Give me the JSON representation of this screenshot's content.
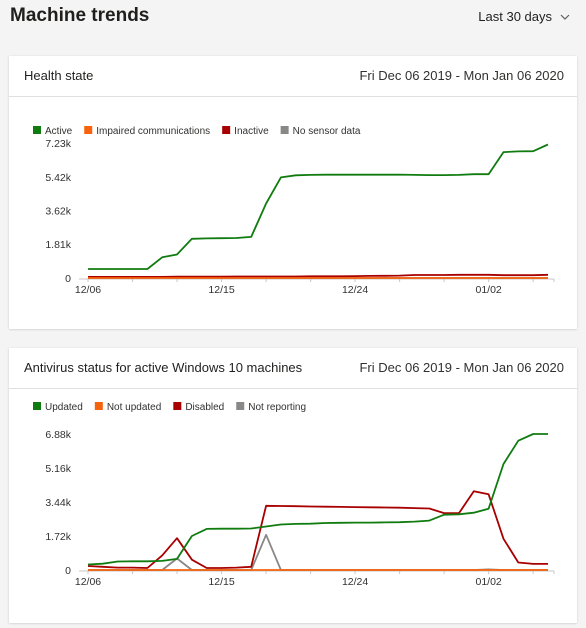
{
  "page": {
    "title": "Machine trends",
    "range_selector": {
      "value": "Last 30 days",
      "icon": "chevron-down-icon"
    }
  },
  "cards": [
    {
      "title": "Health state",
      "date_range": "Fri Dec 06 2019 - Mon Jan 06 2020"
    },
    {
      "title": "Antivirus status for active Windows 10 machines",
      "date_range": "Fri Dec 06 2019 - Mon Jan 06 2020"
    }
  ],
  "chart_data": [
    {
      "type": "line",
      "title": "",
      "x": [
        "12/06",
        "12/07",
        "12/08",
        "12/09",
        "12/10",
        "12/11",
        "12/12",
        "12/13",
        "12/14",
        "12/15",
        "12/16",
        "12/17",
        "12/18",
        "12/19",
        "12/20",
        "12/21",
        "12/22",
        "12/23",
        "12/24",
        "12/25",
        "12/26",
        "12/27",
        "12/28",
        "12/29",
        "12/30",
        "12/31",
        "01/01",
        "01/02",
        "01/03",
        "01/04",
        "01/05",
        "01/06"
      ],
      "x_tick_labels": [
        "12/06",
        "12/15",
        "12/24",
        "01/02"
      ],
      "y_ticks": [
        0,
        1810,
        3620,
        5420,
        7230
      ],
      "y_tick_labels": [
        "0",
        "1.81k",
        "3.62k",
        "5.42k",
        "7.23k"
      ],
      "ylim": [
        0,
        7230
      ],
      "legend_position": "top-left",
      "grid": false,
      "series": [
        {
          "name": "Active",
          "color": "#107c10",
          "values": [
            480,
            480,
            480,
            480,
            480,
            1110,
            1260,
            2100,
            2120,
            2130,
            2140,
            2200,
            3990,
            5390,
            5500,
            5520,
            5530,
            5530,
            5530,
            5530,
            5530,
            5540,
            5520,
            5510,
            5510,
            5520,
            5560,
            5560,
            6740,
            6780,
            6790,
            7150
          ]
        },
        {
          "name": "Impaired communications",
          "color": "#f7630c",
          "values": [
            0,
            0,
            0,
            0,
            0,
            0,
            0,
            0,
            0,
            0,
            0,
            0,
            0,
            0,
            0,
            0,
            0,
            0,
            0,
            0,
            0,
            0,
            0,
            0,
            0,
            0,
            0,
            0,
            0,
            0,
            0,
            0
          ]
        },
        {
          "name": "Inactive",
          "color": "#a80000",
          "values": [
            60,
            60,
            60,
            60,
            60,
            60,
            70,
            70,
            70,
            70,
            80,
            80,
            80,
            80,
            80,
            90,
            90,
            90,
            100,
            110,
            120,
            130,
            160,
            160,
            160,
            170,
            170,
            170,
            150,
            150,
            150,
            170
          ]
        },
        {
          "name": "No sensor data",
          "color": "#8a8886",
          "values": [
            0,
            0,
            0,
            0,
            0,
            0,
            0,
            0,
            0,
            0,
            0,
            0,
            0,
            0,
            0,
            0,
            0,
            0,
            0,
            0,
            0,
            0,
            0,
            0,
            0,
            0,
            0,
            0,
            0,
            0,
            0,
            0
          ]
        }
      ]
    },
    {
      "type": "line",
      "title": "",
      "x": [
        "12/06",
        "12/07",
        "12/08",
        "12/09",
        "12/10",
        "12/11",
        "12/12",
        "12/13",
        "12/14",
        "12/15",
        "12/16",
        "12/17",
        "12/18",
        "12/19",
        "12/20",
        "12/21",
        "12/22",
        "12/23",
        "12/24",
        "12/25",
        "12/26",
        "12/27",
        "12/28",
        "12/29",
        "12/30",
        "12/31",
        "01/01",
        "01/02",
        "01/03",
        "01/04",
        "01/05",
        "01/06"
      ],
      "x_tick_labels": [
        "12/06",
        "12/15",
        "12/24",
        "01/02"
      ],
      "y_ticks": [
        0,
        1720,
        3440,
        5160,
        6880
      ],
      "y_tick_labels": [
        "0",
        "1.72k",
        "3.44k",
        "5.16k",
        "6.88k"
      ],
      "ylim": [
        0,
        6880
      ],
      "legend_position": "top-left",
      "grid": false,
      "series": [
        {
          "name": "Updated",
          "color": "#107c10",
          "values": [
            280,
            320,
            430,
            440,
            440,
            460,
            560,
            1720,
            2080,
            2090,
            2090,
            2100,
            2200,
            2300,
            2330,
            2340,
            2380,
            2390,
            2400,
            2400,
            2410,
            2420,
            2450,
            2500,
            2800,
            2820,
            2900,
            3100,
            5360,
            6540,
            6880,
            6880
          ]
        },
        {
          "name": "Not updated",
          "color": "#f7630c",
          "values": [
            0,
            0,
            0,
            0,
            0,
            0,
            0,
            0,
            0,
            0,
            0,
            0,
            0,
            0,
            0,
            0,
            0,
            0,
            0,
            0,
            0,
            0,
            0,
            0,
            0,
            0,
            0,
            0,
            0,
            0,
            0,
            0
          ]
        },
        {
          "name": "Disabled",
          "color": "#a80000",
          "values": [
            200,
            160,
            120,
            120,
            100,
            740,
            1610,
            520,
            100,
            100,
            120,
            160,
            3250,
            3240,
            3230,
            3210,
            3200,
            3190,
            3180,
            3170,
            3160,
            3150,
            3130,
            3110,
            2880,
            2880,
            3980,
            3830,
            1580,
            380,
            310,
            310
          ]
        },
        {
          "name": "Not reporting",
          "color": "#8a8886",
          "values": [
            0,
            0,
            0,
            0,
            0,
            0,
            580,
            0,
            0,
            0,
            0,
            0,
            1780,
            0,
            0,
            0,
            0,
            0,
            0,
            0,
            0,
            0,
            0,
            0,
            0,
            0,
            0,
            30,
            0,
            0,
            0,
            0
          ]
        }
      ]
    }
  ]
}
